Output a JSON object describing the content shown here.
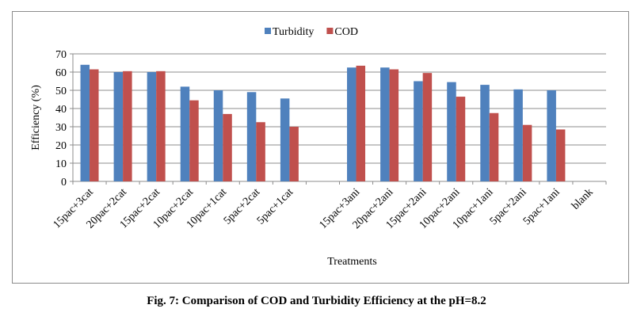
{
  "caption": "Fig. 7: Comparison of COD and Turbidity Efficiency at the pH=8.2",
  "chart_data": {
    "type": "bar",
    "title": "",
    "xlabel": "Treatments",
    "ylabel": "Efficiency (%)",
    "ylim": [
      0,
      70
    ],
    "yticks": [
      0,
      10,
      20,
      30,
      40,
      50,
      60,
      70
    ],
    "grid": true,
    "legend": "top-center",
    "categories": [
      "15pac+3cat",
      "20pac+2cat",
      "15pac+2cat",
      "10pac+2cat",
      "10pac+1cat",
      "5pac+2cat",
      "5pac+1cat",
      "",
      "15pac+3ani",
      "20pac+2ani",
      "15pac+2ani",
      "10pac+2ani",
      "10pac+1ani",
      "5pac+2ani",
      "5pac+1ani",
      "blank"
    ],
    "series": [
      {
        "name": "Turbidity",
        "color": "#4f81bd",
        "values": [
          64,
          60,
          60,
          52,
          50,
          49,
          45.5,
          null,
          62.5,
          62.5,
          55,
          54.5,
          53,
          50.5,
          50,
          null
        ]
      },
      {
        "name": "COD",
        "color": "#c0504d",
        "values": [
          61.5,
          60.5,
          60.5,
          44.5,
          37,
          32.5,
          30,
          null,
          63.5,
          61.5,
          59.5,
          46.5,
          37.5,
          31,
          28.5,
          null
        ]
      }
    ]
  }
}
